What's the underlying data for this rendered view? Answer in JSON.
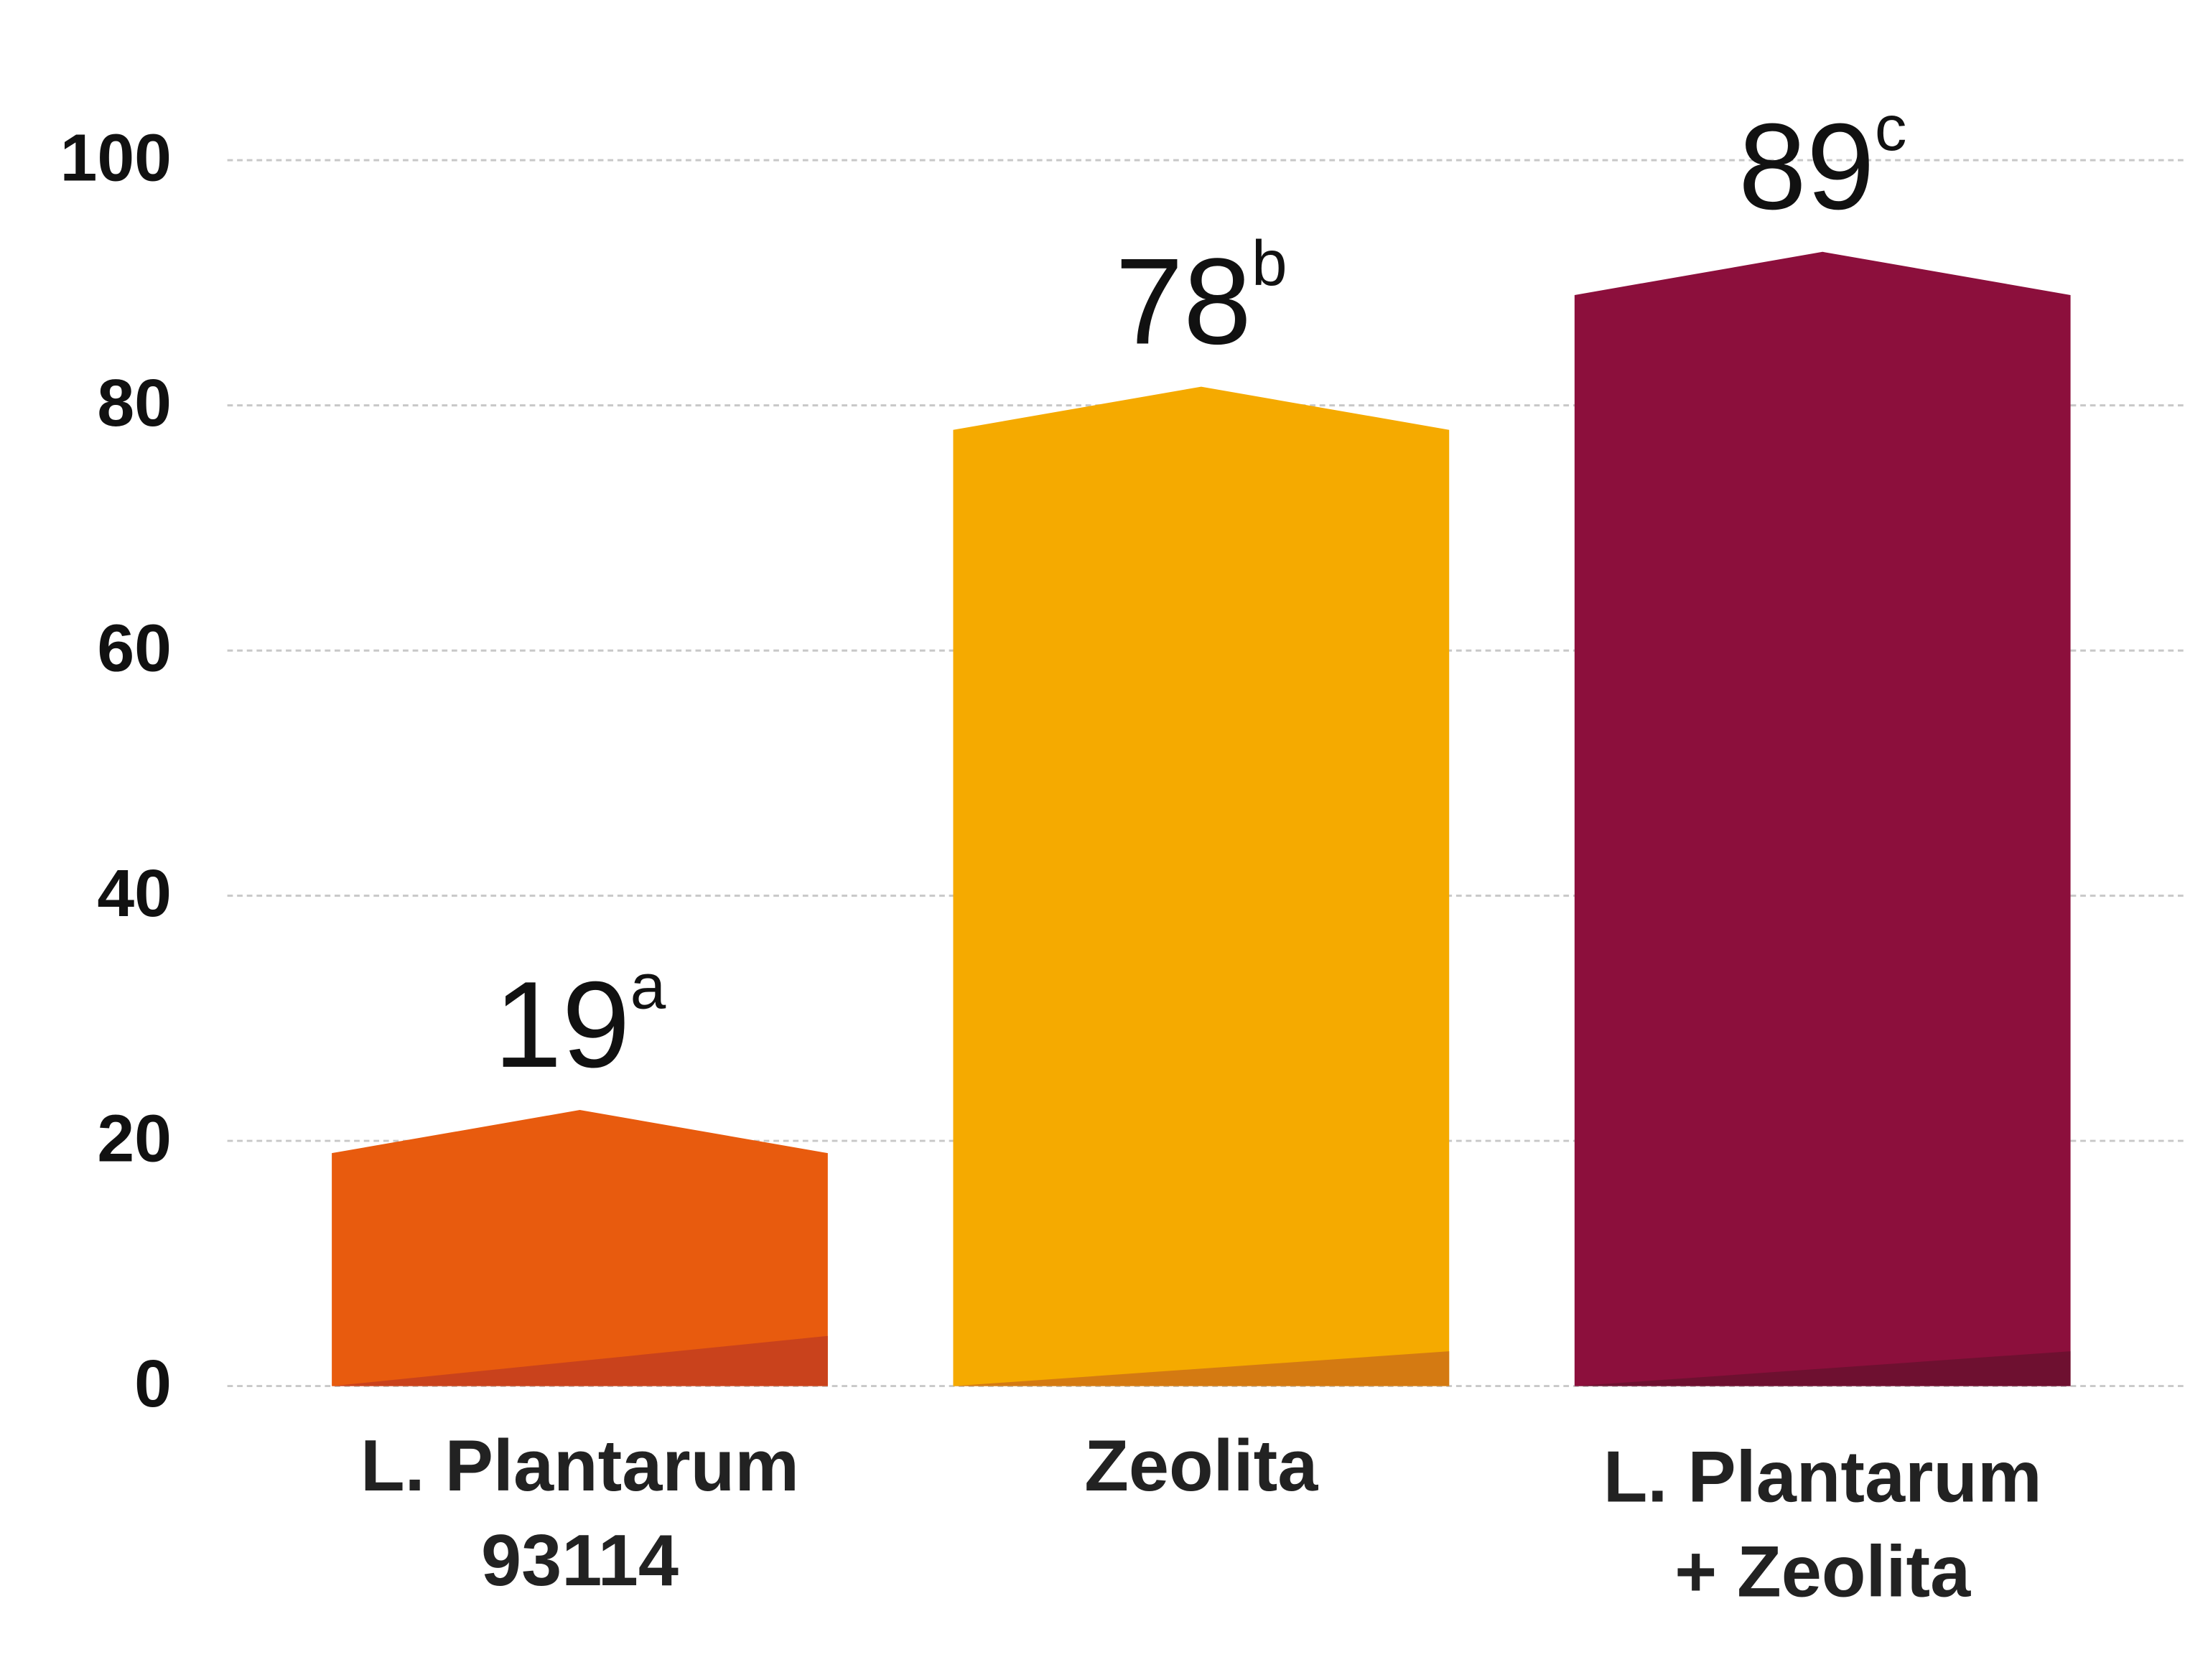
{
  "chart_data": {
    "type": "bar",
    "categories": [
      [
        "L. Plantarum",
        "93114"
      ],
      [
        "Zeolita"
      ],
      [
        "L. Plantarum",
        "+ Zeolita"
      ]
    ],
    "values": [
      19,
      78,
      89
    ],
    "value_suffixes": [
      "a",
      "b",
      "c"
    ],
    "colors": [
      "#e85b0e",
      "#f5aa00",
      "#8c0f3c"
    ],
    "shade_colors": [
      "#c9421c",
      "#d47a12",
      "#6e1030"
    ],
    "ylim": [
      0,
      100
    ],
    "yticks": [
      0,
      20,
      40,
      60,
      80,
      100
    ],
    "grid": true
  }
}
